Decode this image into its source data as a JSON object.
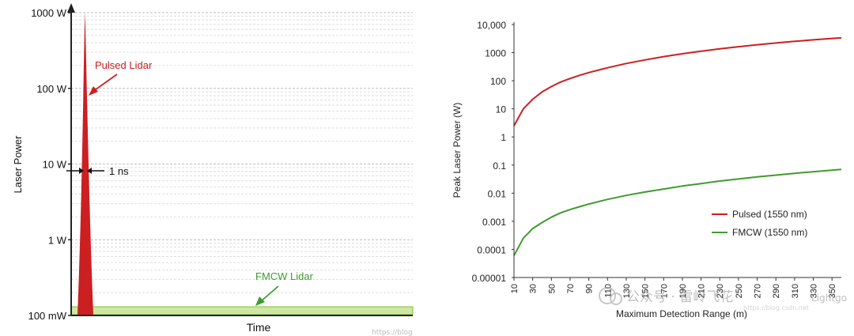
{
  "colors": {
    "pulsed": "#cc1f22",
    "fmcw": "#3f9b2f",
    "fmcw_band_fill": "#cfe7a0",
    "fmcw_band_stroke": "#7fbf3b",
    "axis": "#222222",
    "grid": "#d9d9d9"
  },
  "chart_data": [
    {
      "type": "area",
      "xlabel": "Time",
      "ylabel": "Laser Power",
      "y_scale": "log",
      "y_ticks": [
        {
          "value": 0.1,
          "label": "100 mW"
        },
        {
          "value": 1,
          "label": "1 W"
        },
        {
          "value": 10,
          "label": "10 W"
        },
        {
          "value": 100,
          "label": "100 W"
        },
        {
          "value": 1000,
          "label": "1000 W"
        }
      ],
      "ylim": [
        0.1,
        1000
      ],
      "grid": true,
      "series": [
        {
          "name": "Pulsed Lidar",
          "peak_w": 1000,
          "pulse_width_label": "1 ns"
        },
        {
          "name": "FMCW Lidar",
          "level_w": 0.1
        }
      ]
    },
    {
      "type": "line",
      "xlabel": "Maximum Detection Range (m)",
      "ylabel": "Peak Laser Power (W)",
      "y_scale": "log",
      "ylim": [
        1e-05,
        10000
      ],
      "y_tick_labels": [
        "0.00001",
        "0.0001",
        "0.001",
        "0.01",
        "0.1",
        "1",
        "10",
        "100",
        "1000",
        "10,000"
      ],
      "x_ticks": [
        10,
        30,
        50,
        70,
        90,
        110,
        130,
        150,
        170,
        190,
        210,
        230,
        250,
        270,
        290,
        310,
        330,
        350
      ],
      "xlim": [
        10,
        360
      ],
      "legend_position": "right",
      "grid": false,
      "series": [
        {
          "name": "Pulsed (1550 nm)",
          "x": [
            10,
            20,
            30,
            40,
            50,
            60,
            70,
            80,
            90,
            110,
            130,
            150,
            170,
            190,
            210,
            230,
            250,
            270,
            290,
            310,
            330,
            350,
            360
          ],
          "y": [
            2.5,
            10,
            22,
            40,
            62,
            90,
            120,
            155,
            195,
            290,
            410,
            550,
            720,
            910,
            1120,
            1360,
            1620,
            1900,
            2200,
            2520,
            2850,
            3200,
            3350
          ]
        },
        {
          "name": "FMCW (1550 nm)",
          "x": [
            10,
            20,
            30,
            40,
            50,
            60,
            70,
            80,
            90,
            110,
            130,
            150,
            170,
            190,
            210,
            230,
            250,
            270,
            290,
            310,
            330,
            350,
            360
          ],
          "y": [
            6e-05,
            0.00025,
            0.00055,
            0.0009,
            0.0014,
            0.002,
            0.0026,
            0.0033,
            0.0041,
            0.006,
            0.0083,
            0.011,
            0.014,
            0.018,
            0.022,
            0.027,
            0.032,
            0.038,
            0.044,
            0.051,
            0.058,
            0.066,
            0.07
          ]
        }
      ]
    }
  ],
  "watermarks": {
    "left_url": "https://blog",
    "right_channel": "公众号 · 雷岭飞花",
    "right_handle": "Lightgo",
    "right_url": "https://blog.csdn.net"
  }
}
